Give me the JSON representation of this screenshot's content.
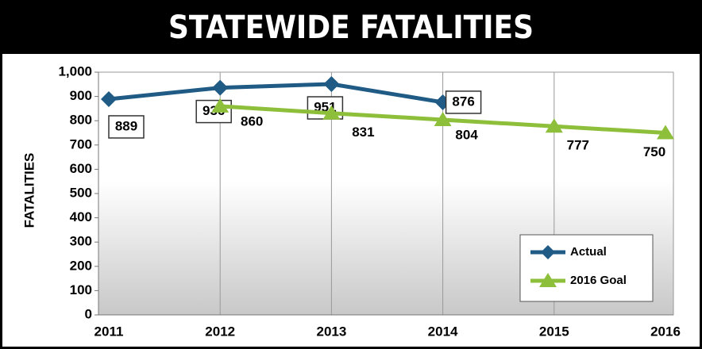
{
  "chart_data": {
    "type": "line",
    "title": "STATEWIDE FATALITIES",
    "ylabel": "FATALITIES",
    "categories": [
      "2011",
      "2012",
      "2013",
      "2014",
      "2015",
      "2016"
    ],
    "series": [
      {
        "name": "Actual",
        "color": "#1f5b85",
        "values": [
          889,
          936,
          951,
          876,
          null,
          null
        ]
      },
      {
        "name": "2016 Goal",
        "color": "#8dbf3b",
        "values": [
          null,
          860,
          831,
          804,
          777,
          750
        ]
      }
    ],
    "ylim": [
      0,
      1000
    ],
    "yticks": [
      0,
      100,
      200,
      300,
      400,
      500,
      600,
      700,
      800,
      900,
      {
        "value": 1000,
        "label": "1,000"
      }
    ],
    "legend": "lower right"
  }
}
